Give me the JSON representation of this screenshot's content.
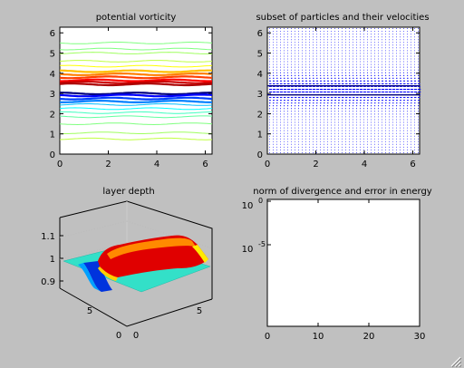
{
  "chart_data": [
    {
      "id": "pv",
      "type": "contour",
      "title": "potential vorticity",
      "xlim": [
        0,
        6.28
      ],
      "ylim": [
        0,
        6.28
      ],
      "xticks": [
        0,
        2,
        4,
        6
      ],
      "yticks": [
        0,
        1,
        2,
        3,
        4,
        5,
        6
      ],
      "grid": false,
      "contours_y": [
        {
          "y": 5.5,
          "color": "#7fff7f"
        },
        {
          "y": 5.2,
          "color": "#7fff7f"
        },
        {
          "y": 5.0,
          "color": "#9fff5f"
        },
        {
          "y": 4.6,
          "color": "#bfff3f"
        },
        {
          "y": 4.35,
          "color": "#ffff00"
        },
        {
          "y": 4.1,
          "color": "#ffbf00"
        },
        {
          "y": 3.95,
          "color": "#ff7f00"
        },
        {
          "y": 3.8,
          "color": "#ff3f00"
        },
        {
          "y": 3.65,
          "color": "#ff0000"
        },
        {
          "y": 3.55,
          "color": "#cc0000"
        },
        {
          "y": 3.45,
          "color": "#aa0000"
        },
        {
          "y": 3.0,
          "color": "#00007f"
        },
        {
          "y": 2.9,
          "color": "#0000ff"
        },
        {
          "y": 2.75,
          "color": "#0040ff"
        },
        {
          "y": 2.6,
          "color": "#0080ff"
        },
        {
          "y": 2.45,
          "color": "#00bfff"
        },
        {
          "y": 2.25,
          "color": "#00ffff"
        },
        {
          "y": 2.05,
          "color": "#3fffbf"
        },
        {
          "y": 1.85,
          "color": "#5fff9f"
        },
        {
          "y": 1.5,
          "color": "#7fff7f"
        },
        {
          "y": 1.05,
          "color": "#9fff5f"
        },
        {
          "y": 0.75,
          "color": "#bfff3f"
        }
      ]
    },
    {
      "id": "particles",
      "type": "quiver",
      "title": "subset of particles and their velocities",
      "xlim": [
        0,
        6.28
      ],
      "ylim": [
        0,
        6.28
      ],
      "xticks": [
        0,
        2,
        4,
        6
      ],
      "yticks": [
        0,
        1,
        2,
        3,
        4,
        5,
        6
      ],
      "grid": false,
      "dot_color": "#0000ff",
      "jet_lines_y": [
        3.38,
        2.93
      ],
      "grid_nx": 42,
      "grid_ny": 46
    },
    {
      "id": "depth",
      "type": "surface",
      "title": "layer depth",
      "zlim": [
        0.85,
        1.15
      ],
      "zticks": [
        0.9,
        1,
        1.1
      ],
      "yticks": [
        0,
        5
      ],
      "xticks": [
        0,
        5
      ],
      "grid": true
    },
    {
      "id": "norm",
      "type": "line",
      "scale_y": "log",
      "title": "norm of divergence and error in energy",
      "xlim": [
        0,
        30
      ],
      "xticks": [
        0,
        10,
        20,
        30
      ],
      "yticks": [
        {
          "base": "10",
          "exp": "0"
        },
        {
          "base": "10",
          "exp": "-5"
        }
      ],
      "grid": false,
      "series": []
    }
  ]
}
